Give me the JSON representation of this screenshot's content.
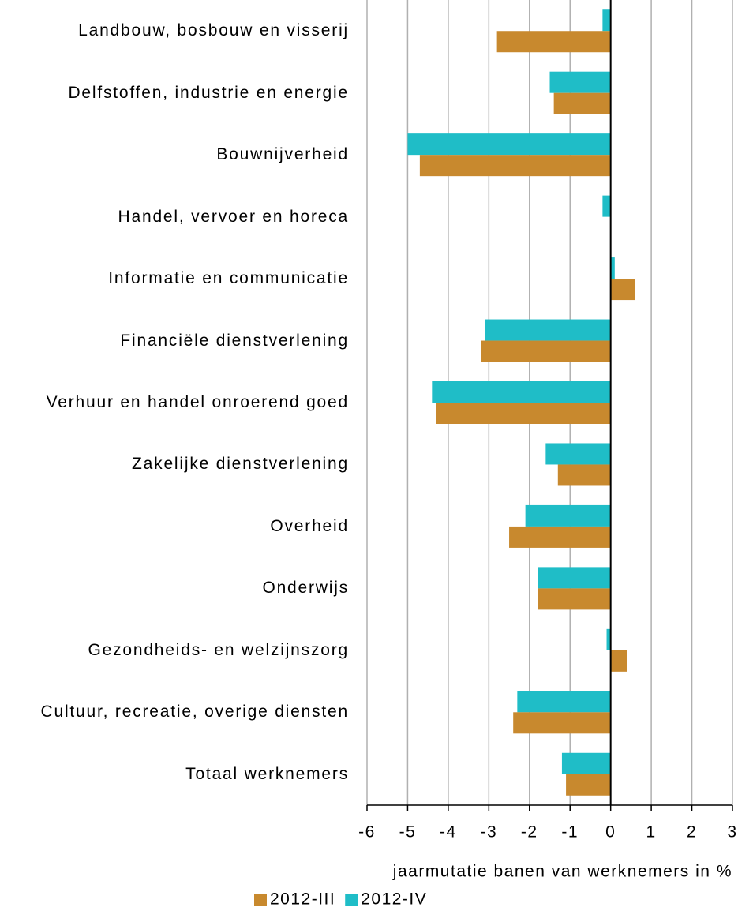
{
  "chart_data": {
    "type": "barh",
    "categories": [
      "Landbouw, bosbouw en visserij",
      "Delfstoffen, industrie en energie",
      "Bouwnijverheid",
      "Handel, vervoer en horeca",
      "Informatie en communicatie",
      "Financiële dienstverlening",
      "Verhuur en handel onroerend goed",
      "Zakelijke dienstverlening",
      "Overheid",
      "Onderwijs",
      "Gezondheids- en welzijnszorg",
      "Cultuur, recreatie, overige diensten",
      "Totaal werknemers"
    ],
    "series": [
      {
        "name": "2012-III",
        "color": "#c8892e",
        "values": [
          -2.8,
          -1.4,
          -4.7,
          0,
          0.6,
          -3.2,
          -4.3,
          -1.3,
          -2.5,
          -1.8,
          0.4,
          -2.4,
          -1.1
        ]
      },
      {
        "name": "2012-IV",
        "color": "#1fbdc7",
        "values": [
          -0.2,
          -1.5,
          -5.0,
          -0.2,
          0.1,
          -3.1,
          -4.4,
          -1.6,
          -2.1,
          -1.8,
          -0.1,
          -2.3,
          -1.2
        ]
      }
    ],
    "xlabel": "jaarmutatie banen van werknemers in %",
    "xlim": [
      -6,
      3
    ],
    "xticks": [
      -6,
      -5,
      -4,
      -3,
      -2,
      -1,
      0,
      1,
      2,
      3
    ],
    "grid": true
  }
}
